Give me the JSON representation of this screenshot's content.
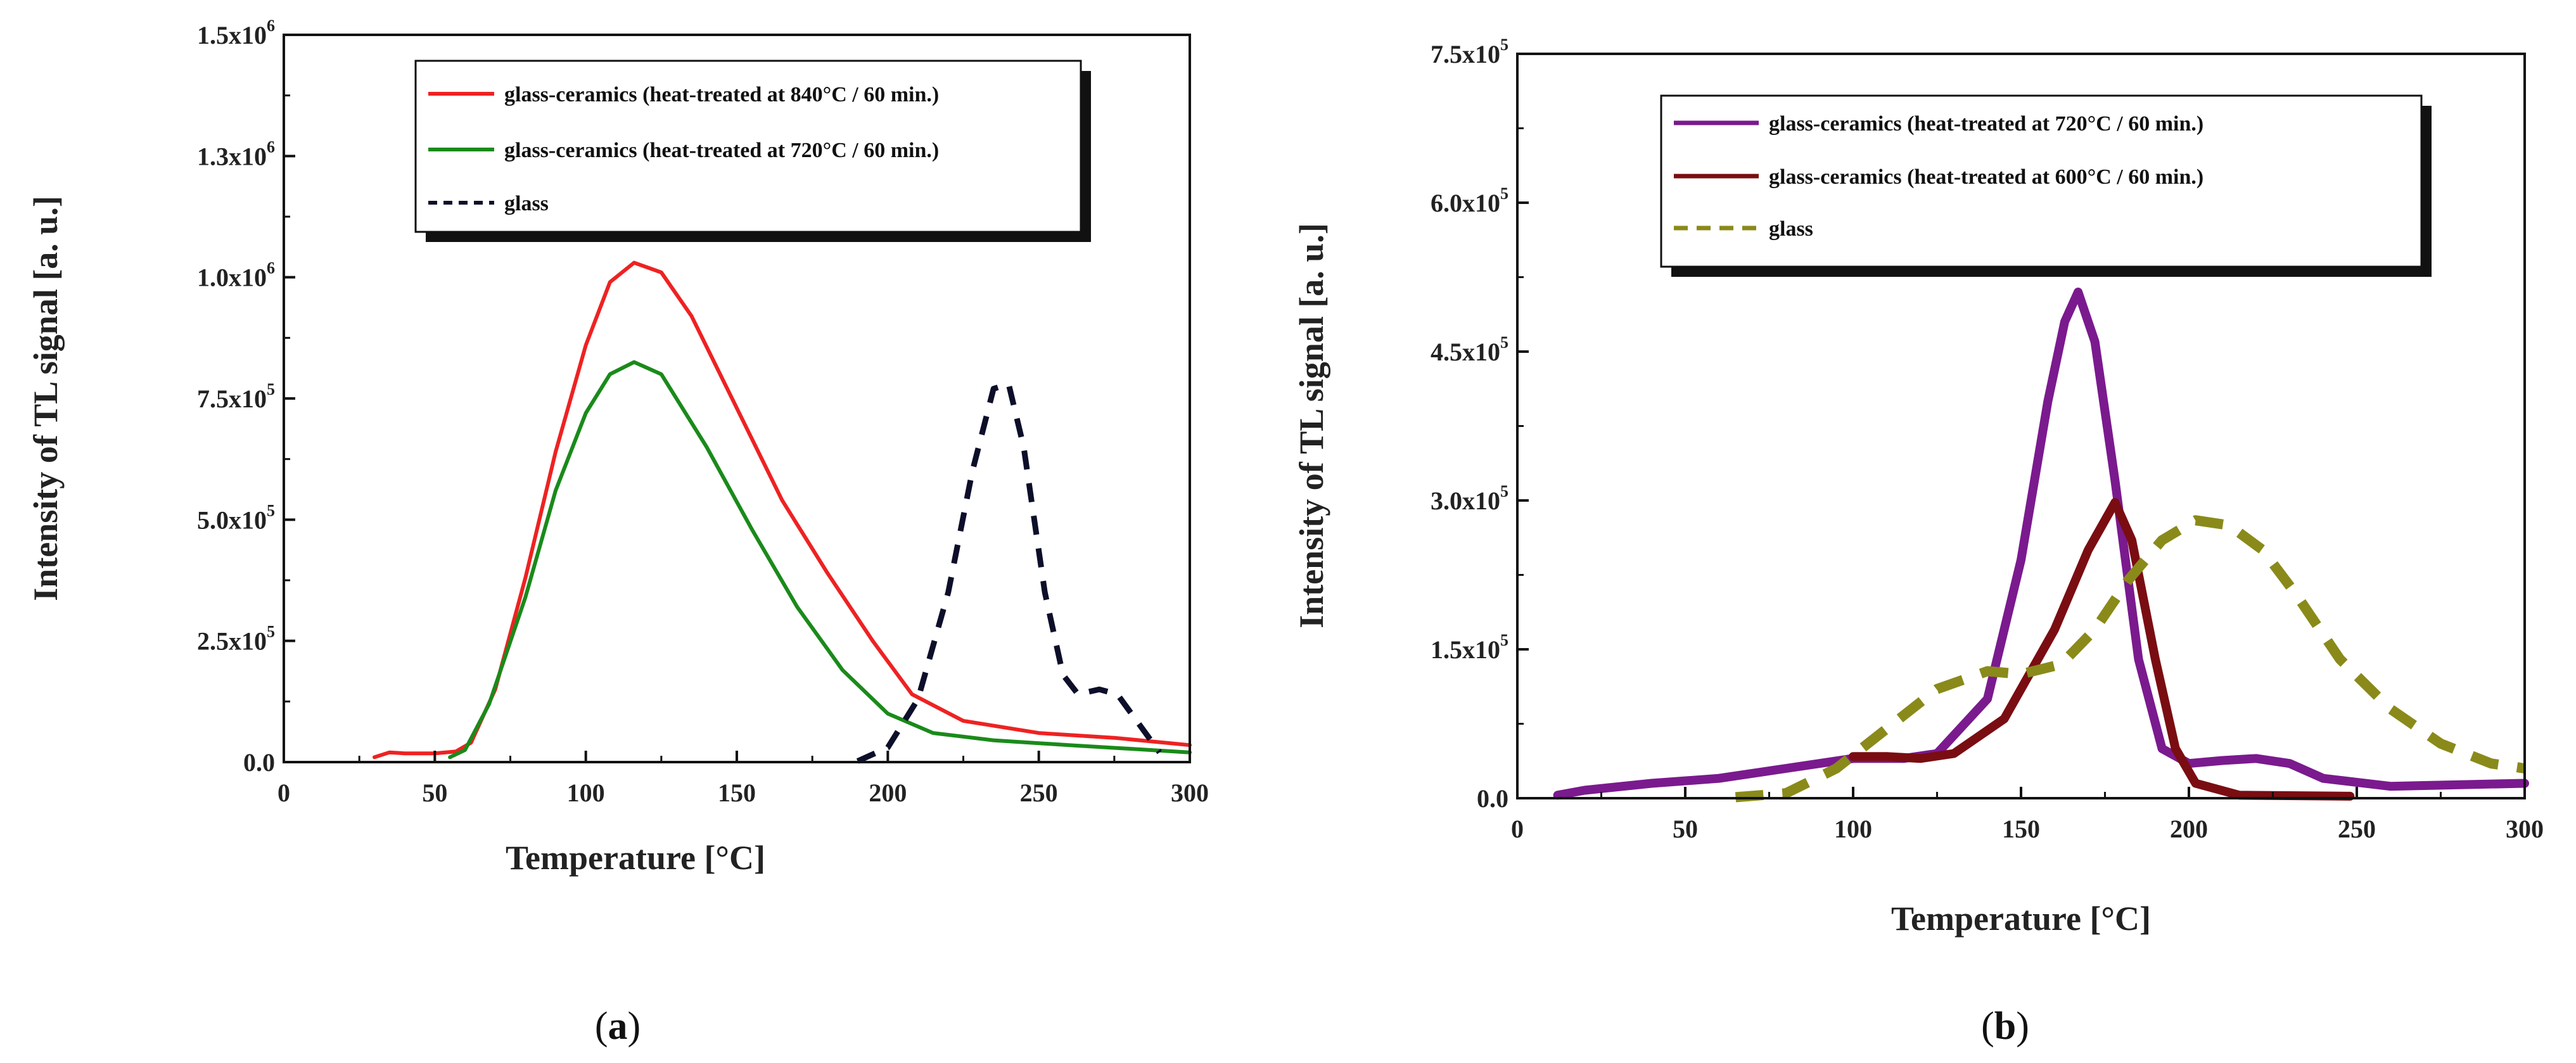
{
  "chart_data": [
    {
      "type": "line",
      "caption_letter": "a",
      "xlabel": "Temperature [°C]",
      "ylabel": "Intensity of TL signal [a. u.]",
      "xlim": [
        0,
        300
      ],
      "ylim": [
        0,
        1500000
      ],
      "xticks": [
        0,
        50,
        100,
        150,
        200,
        250,
        300
      ],
      "yticks": [
        {
          "value": 0,
          "mantissa": "0.0",
          "exp": ""
        },
        {
          "value": 250000,
          "mantissa": "2.5x10",
          "exp": "5"
        },
        {
          "value": 500000,
          "mantissa": "5.0x10",
          "exp": "5"
        },
        {
          "value": 750000,
          "mantissa": "7.5x10",
          "exp": "5"
        },
        {
          "value": 1000000,
          "mantissa": "1.0x10",
          "exp": "6"
        },
        {
          "value": 1250000,
          "mantissa": "1.3x10",
          "exp": "6"
        },
        {
          "value": 1500000,
          "mantissa": "1.5x10",
          "exp": "6"
        }
      ],
      "legend_position": "top-right",
      "series": [
        {
          "name": "glass-ceramics (heat-treated at 840°C / 60 min.)",
          "color": "#ee2222",
          "dash": "solid",
          "points": [
            [
              30,
              10000
            ],
            [
              35,
              20000
            ],
            [
              40,
              18000
            ],
            [
              50,
              18000
            ],
            [
              57,
              22000
            ],
            [
              62,
              40000
            ],
            [
              70,
              150000
            ],
            [
              80,
              380000
            ],
            [
              90,
              640000
            ],
            [
              100,
              860000
            ],
            [
              108,
              990000
            ],
            [
              116,
              1030000
            ],
            [
              125,
              1010000
            ],
            [
              135,
              920000
            ],
            [
              150,
              730000
            ],
            [
              165,
              540000
            ],
            [
              180,
              390000
            ],
            [
              195,
              250000
            ],
            [
              208,
              140000
            ],
            [
              225,
              85000
            ],
            [
              250,
              60000
            ],
            [
              275,
              50000
            ],
            [
              300,
              35000
            ]
          ]
        },
        {
          "name": "glass-ceramics (heat-treated at 720°C / 60 min.)",
          "color": "#1a8a1a",
          "dash": "solid",
          "points": [
            [
              55,
              10000
            ],
            [
              60,
              25000
            ],
            [
              68,
              120000
            ],
            [
              80,
              340000
            ],
            [
              90,
              560000
            ],
            [
              100,
              720000
            ],
            [
              108,
              800000
            ],
            [
              116,
              825000
            ],
            [
              125,
              800000
            ],
            [
              140,
              650000
            ],
            [
              155,
              480000
            ],
            [
              170,
              320000
            ],
            [
              185,
              190000
            ],
            [
              200,
              100000
            ],
            [
              215,
              60000
            ],
            [
              235,
              45000
            ],
            [
              260,
              35000
            ],
            [
              300,
              20000
            ]
          ]
        },
        {
          "name": "glass",
          "color": "#0d0f2a",
          "dash": "dashed",
          "points": [
            [
              190,
              2000
            ],
            [
              200,
              30000
            ],
            [
              210,
              130000
            ],
            [
              220,
              350000
            ],
            [
              228,
              600000
            ],
            [
              235,
              770000
            ],
            [
              240,
              780000
            ],
            [
              245,
              650000
            ],
            [
              252,
              350000
            ],
            [
              258,
              180000
            ],
            [
              263,
              140000
            ],
            [
              270,
              150000
            ],
            [
              276,
              140000
            ],
            [
              283,
              80000
            ],
            [
              290,
              20000
            ]
          ]
        }
      ]
    },
    {
      "type": "line",
      "caption_letter": "b",
      "xlabel": "Temperature [°C]",
      "ylabel": "Intensity of TL signal [a. u.]",
      "xlim": [
        0,
        300
      ],
      "ylim": [
        0,
        750000
      ],
      "xticks": [
        0,
        50,
        100,
        150,
        200,
        250,
        300
      ],
      "yticks": [
        {
          "value": 0,
          "mantissa": "0.0",
          "exp": ""
        },
        {
          "value": 150000,
          "mantissa": "1.5x10",
          "exp": "5"
        },
        {
          "value": 300000,
          "mantissa": "3.0x10",
          "exp": "5"
        },
        {
          "value": 450000,
          "mantissa": "4.5x10",
          "exp": "5"
        },
        {
          "value": 600000,
          "mantissa": "6.0x10",
          "exp": "5"
        },
        {
          "value": 750000,
          "mantissa": "7.5x10",
          "exp": "5"
        }
      ],
      "legend_position": "top-center",
      "series": [
        {
          "name": "glass-ceramics (heat-treated at 720°C / 60 min.)",
          "color": "#7a1a8e",
          "dash": "solid",
          "points": [
            [
              12,
              3000
            ],
            [
              20,
              8000
            ],
            [
              40,
              15000
            ],
            [
              60,
              20000
            ],
            [
              80,
              30000
            ],
            [
              100,
              40000
            ],
            [
              115,
              40000
            ],
            [
              125,
              45000
            ],
            [
              140,
              100000
            ],
            [
              150,
              240000
            ],
            [
              158,
              400000
            ],
            [
              163,
              480000
            ],
            [
              167,
              510000
            ],
            [
              172,
              460000
            ],
            [
              178,
              320000
            ],
            [
              185,
              140000
            ],
            [
              192,
              50000
            ],
            [
              200,
              35000
            ],
            [
              210,
              38000
            ],
            [
              220,
              40000
            ],
            [
              230,
              35000
            ],
            [
              240,
              20000
            ],
            [
              260,
              12000
            ],
            [
              300,
              15000
            ]
          ]
        },
        {
          "name": "glass-ceramics (heat-treated at 600°C / 60 min.)",
          "color": "#7a0d12",
          "dash": "solid",
          "points": [
            [
              100,
              42000
            ],
            [
              110,
              42000
            ],
            [
              120,
              40000
            ],
            [
              130,
              45000
            ],
            [
              145,
              80000
            ],
            [
              160,
              170000
            ],
            [
              170,
              250000
            ],
            [
              178,
              298000
            ],
            [
              183,
              260000
            ],
            [
              190,
              140000
            ],
            [
              196,
              50000
            ],
            [
              202,
              15000
            ],
            [
              215,
              3000
            ],
            [
              248,
              2000
            ]
          ]
        },
        {
          "name": "glass",
          "color": "#8a8a1a",
          "dash": "dashed",
          "points": [
            [
              65,
              1000
            ],
            [
              80,
              5000
            ],
            [
              95,
              30000
            ],
            [
              110,
              70000
            ],
            [
              125,
              110000
            ],
            [
              140,
              128000
            ],
            [
              150,
              125000
            ],
            [
              162,
              135000
            ],
            [
              172,
              170000
            ],
            [
              182,
              220000
            ],
            [
              192,
              260000
            ],
            [
              202,
              280000
            ],
            [
              212,
              275000
            ],
            [
              222,
              250000
            ],
            [
              232,
              205000
            ],
            [
              245,
              140000
            ],
            [
              260,
              90000
            ],
            [
              275,
              55000
            ],
            [
              290,
              35000
            ],
            [
              300,
              30000
            ]
          ]
        }
      ]
    }
  ]
}
